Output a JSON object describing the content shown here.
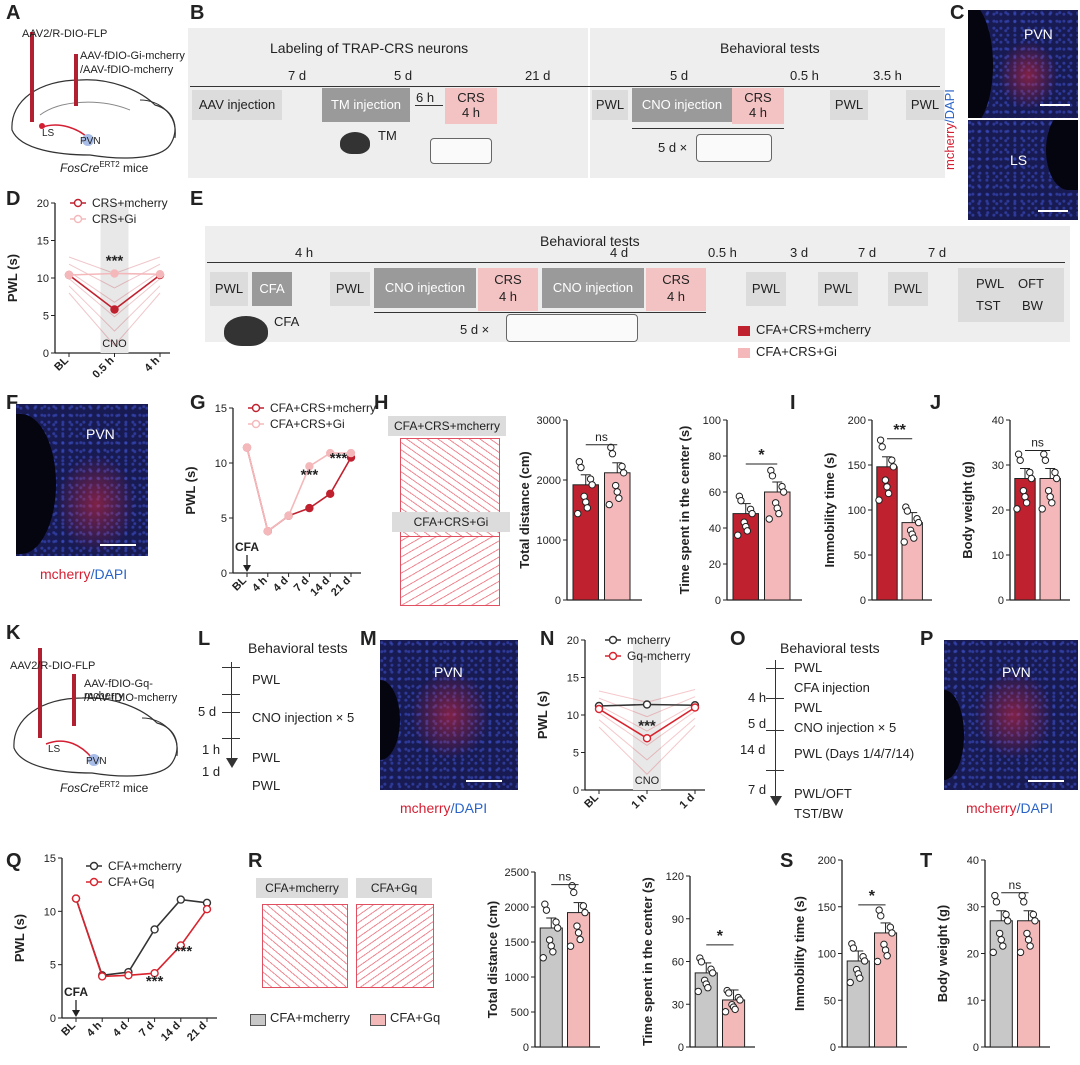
{
  "panels": {
    "A": "A",
    "B": "B",
    "C": "C",
    "D": "D",
    "E": "E",
    "F": "F",
    "G": "G",
    "H": "H",
    "I": "I",
    "J": "J",
    "K": "K",
    "L": "L",
    "M": "M",
    "N": "N",
    "O": "O",
    "P": "P",
    "Q": "Q",
    "R": "R",
    "S": "S",
    "T": "T"
  },
  "colors": {
    "mcherry_dark": "#c0212f",
    "gi_light": "#f4b8bb",
    "mcherry_gray": "#c8c8c8",
    "gq_pink": "#f3b9b9",
    "red_track": "#d9232e",
    "box_gray": "#dcdcdc",
    "box_dark": "#9a9a9a",
    "box_pink": "#f3c2c2"
  },
  "A": {
    "virus1": "AAV2/R-DIO-FLP",
    "virus2": "AAV-fDIO-Gi-mcherry",
    "virus3": "/AAV-fDIO-mcherry",
    "ls": "LS",
    "pvn": "PVN",
    "mice": "FosCre",
    "mice_sup": "ERT2",
    "mice_suffix": " mice"
  },
  "B": {
    "header_left": "Labeling of TRAP-CRS neurons",
    "header_right": "Behavioral tests",
    "durations": [
      "7 d",
      "5 d",
      "21 d",
      "5 d",
      "0.5 h",
      "3.5 h",
      "6 h"
    ],
    "boxes": [
      "AAV injection",
      "TM injection",
      "CRS",
      "4 h",
      "PWL",
      "CNO injection",
      "CRS",
      "4 h",
      "PWL",
      "PWL"
    ],
    "tm": "TM",
    "repeat": "5 d ×"
  },
  "C": {
    "top_label": "PVN",
    "bottom_label": "LS",
    "side_label_red": "mcherry",
    "side_label_blue": "/DAPI"
  },
  "E": {
    "header": "Behavioral tests",
    "durations": [
      "4 h",
      "4 d",
      "0.5 h",
      "3 d",
      "7 d",
      "7 d"
    ],
    "boxes": [
      "PWL",
      "CFA",
      "PWL",
      "CNO injection",
      "CRS",
      "4 h",
      "CNO injection",
      "CRS",
      "4 h",
      "PWL",
      "PWL",
      "PWL"
    ],
    "final": [
      "PWL",
      "OFT",
      "TST",
      "BW"
    ],
    "cfa": "CFA",
    "repeat": "5 d ×",
    "legend": [
      "CFA+CRS+mcherry",
      "CFA+CRS+Gi"
    ]
  },
  "F": {
    "label": "PVN",
    "cap_red": "mcherry",
    "cap_blue": "/DAPI"
  },
  "H": {
    "track_labels": [
      "CFA+CRS+mcherry",
      "CFA+CRS+Gi"
    ]
  },
  "K": {
    "virus1": "AAV2/R-DIO-FLP",
    "virus2": "AAV-fDIO-Gq-mcherry",
    "virus3": "/AAV-fDIO-mcherry",
    "ls": "LS",
    "pvn": "PVN",
    "mice": "FosCre",
    "mice_sup": "ERT2",
    "mice_suffix": " mice"
  },
  "L": {
    "title": "Behavioral tests",
    "steps": [
      "PWL",
      "CNO injection × 5",
      "PWL",
      "PWL"
    ],
    "intervals": [
      "5 d",
      "1 h",
      "1 d"
    ]
  },
  "M": {
    "label": "PVN",
    "cap_red": "mcherry",
    "cap_blue": "/DAPI"
  },
  "O": {
    "title": "Behavioral tests",
    "steps": [
      "PWL",
      "CFA injection",
      "PWL",
      "CNO injection × 5",
      "PWL (Days 1/4/7/14)",
      "PWL/OFT",
      "TST/BW"
    ],
    "intervals": [
      "4 h",
      "5 d",
      "14 d",
      "7 d"
    ]
  },
  "P": {
    "label": "PVN",
    "cap_red": "mcherry",
    "cap_blue": "/DAPI"
  },
  "R": {
    "track_labels": [
      "CFA+mcherry",
      "CFA+Gq"
    ],
    "legend": [
      "CFA+mcherry",
      "CFA+Gq"
    ]
  },
  "chart_data": [
    {
      "id": "D",
      "type": "line",
      "ylabel": "PWL (s)",
      "categories": [
        "BL",
        "0.5 h",
        "4 h"
      ],
      "ylim": [
        0,
        20
      ],
      "yticks": [
        0,
        5,
        10,
        15,
        20
      ],
      "series": [
        {
          "name": "CRS+mcherry",
          "values": [
            10.4,
            5.8,
            10.4
          ]
        },
        {
          "name": "CRS+Gi",
          "values": [
            10.4,
            10.6,
            10.5
          ]
        }
      ],
      "shade_label": "CNO",
      "annotations": [
        "***"
      ]
    },
    {
      "id": "G",
      "type": "line",
      "ylabel": "PWL (s)",
      "categories": [
        "BL",
        "4 h",
        "4 d",
        "7 d",
        "14 d",
        "21 d"
      ],
      "ylim": [
        0,
        15
      ],
      "yticks": [
        0,
        5,
        10,
        15
      ],
      "series": [
        {
          "name": "CFA+CRS+mcherry",
          "values": [
            11.4,
            3.8,
            5.2,
            5.9,
            7.2,
            10.5
          ]
        },
        {
          "name": "CFA+CRS+Gi",
          "values": [
            11.4,
            3.8,
            5.2,
            9.7,
            10.9,
            10.9
          ]
        }
      ],
      "arrow_label": "CFA",
      "annotations": [
        "***",
        "***"
      ]
    },
    {
      "id": "H1",
      "type": "bar",
      "ylabel": "Total distance (cm)",
      "ylim": [
        0,
        3000
      ],
      "yticks": [
        0,
        1000,
        2000,
        3000
      ],
      "series": [
        {
          "name": "CFA+CRS+mcherry",
          "values": [
            1920
          ]
        },
        {
          "name": "CFA+CRS+Gi",
          "values": [
            2120
          ]
        }
      ],
      "annotations": [
        "ns"
      ]
    },
    {
      "id": "H2",
      "type": "bar",
      "ylabel": "Time spent in the center (s)",
      "ylim": [
        0,
        100
      ],
      "yticks": [
        0,
        20,
        40,
        60,
        80,
        100
      ],
      "series": [
        {
          "name": "CFA+CRS+mcherry",
          "values": [
            48
          ]
        },
        {
          "name": "CFA+CRS+Gi",
          "values": [
            60
          ]
        }
      ],
      "annotations": [
        "*"
      ]
    },
    {
      "id": "I",
      "type": "bar",
      "ylabel": "Immobility time (s)",
      "ylim": [
        0,
        200
      ],
      "yticks": [
        0,
        50,
        100,
        150,
        200
      ],
      "series": [
        {
          "name": "CFA+CRS+mcherry",
          "values": [
            148
          ]
        },
        {
          "name": "CFA+CRS+Gi",
          "values": [
            86
          ]
        }
      ],
      "annotations": [
        "**"
      ]
    },
    {
      "id": "J",
      "type": "bar",
      "ylabel": "Body weight (g)",
      "ylim": [
        0,
        40
      ],
      "yticks": [
        0,
        10,
        20,
        30,
        40
      ],
      "series": [
        {
          "name": "CFA+CRS+mcherry",
          "values": [
            27
          ]
        },
        {
          "name": "CFA+CRS+Gi",
          "values": [
            27
          ]
        }
      ],
      "annotations": [
        "ns"
      ]
    },
    {
      "id": "N",
      "type": "line",
      "ylabel": "PWL (s)",
      "categories": [
        "BL",
        "1 h",
        "1 d"
      ],
      "ylim": [
        0,
        20
      ],
      "yticks": [
        0,
        5,
        10,
        15,
        20
      ],
      "series": [
        {
          "name": "mcherry",
          "values": [
            11.2,
            11.4,
            11.3
          ]
        },
        {
          "name": "Gq-mcherry",
          "values": [
            10.8,
            6.9,
            11.0
          ]
        }
      ],
      "shade_label": "CNO",
      "annotations": [
        "***"
      ]
    },
    {
      "id": "Q",
      "type": "line",
      "ylabel": "PWL (s)",
      "categories": [
        "BL",
        "4 h",
        "4 d",
        "7 d",
        "14 d",
        "21 d"
      ],
      "ylim": [
        0,
        15
      ],
      "yticks": [
        0,
        5,
        10,
        15
      ],
      "series": [
        {
          "name": "CFA+mcherry",
          "values": [
            11.2,
            4.0,
            4.3,
            8.3,
            11.1,
            10.8
          ]
        },
        {
          "name": "CFA+Gq",
          "values": [
            11.2,
            3.9,
            4.0,
            4.2,
            6.8,
            10.2
          ]
        }
      ],
      "arrow_label": "CFA",
      "annotations": [
        "***",
        "***"
      ]
    },
    {
      "id": "R1",
      "type": "bar",
      "ylabel": "Total distance (cm)",
      "ylim": [
        0,
        2500
      ],
      "yticks": [
        0,
        500,
        1000,
        1500,
        2000,
        2500
      ],
      "series": [
        {
          "name": "CFA+mcherry",
          "values": [
            1700
          ]
        },
        {
          "name": "CFA+Gq",
          "values": [
            1920
          ]
        }
      ],
      "annotations": [
        "ns"
      ]
    },
    {
      "id": "R2",
      "type": "bar",
      "ylabel": "Time spent in the center (s)",
      "ylim": [
        0,
        120
      ],
      "yticks": [
        0,
        30,
        60,
        90,
        120
      ],
      "series": [
        {
          "name": "CFA+mcherry",
          "values": [
            52
          ]
        },
        {
          "name": "CFA+Gq",
          "values": [
            33
          ]
        }
      ],
      "annotations": [
        "*"
      ]
    },
    {
      "id": "S",
      "type": "bar",
      "ylabel": "Immobility time (s)",
      "ylim": [
        0,
        200
      ],
      "yticks": [
        0,
        50,
        100,
        150,
        200
      ],
      "series": [
        {
          "name": "CFA+mcherry",
          "values": [
            92
          ]
        },
        {
          "name": "CFA+Gq",
          "values": [
            122
          ]
        }
      ],
      "annotations": [
        "*"
      ]
    },
    {
      "id": "T",
      "type": "bar",
      "ylabel": "Body weight (g)",
      "ylim": [
        0,
        40
      ],
      "yticks": [
        0,
        10,
        20,
        30,
        40
      ],
      "series": [
        {
          "name": "CFA+mcherry",
          "values": [
            27
          ]
        },
        {
          "name": "CFA+Gq",
          "values": [
            27
          ]
        }
      ],
      "annotations": [
        "ns"
      ]
    }
  ]
}
